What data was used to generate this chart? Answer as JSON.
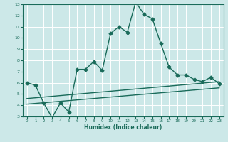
{
  "xlabel": "Humidex (Indice chaleur)",
  "bg_color": "#cce8e8",
  "grid_color": "#ffffff",
  "line_color": "#1a6b5a",
  "xlim": [
    -0.5,
    23.5
  ],
  "ylim": [
    3,
    13
  ],
  "xticks": [
    0,
    1,
    2,
    3,
    4,
    5,
    6,
    7,
    8,
    9,
    10,
    11,
    12,
    13,
    14,
    15,
    16,
    17,
    18,
    19,
    20,
    21,
    22,
    23
  ],
  "yticks": [
    3,
    4,
    5,
    6,
    7,
    8,
    9,
    10,
    11,
    12,
    13
  ],
  "series1_x": [
    0,
    1,
    2,
    3,
    4,
    5,
    6,
    7,
    8,
    9,
    10,
    11,
    12,
    13,
    14,
    15,
    16,
    17,
    18,
    19,
    20,
    21,
    22,
    23
  ],
  "series1_y": [
    6.0,
    5.8,
    4.2,
    2.9,
    4.2,
    3.4,
    7.2,
    7.2,
    7.9,
    7.1,
    10.4,
    11.0,
    10.5,
    13.2,
    12.1,
    11.7,
    9.5,
    7.4,
    6.7,
    6.7,
    6.3,
    6.1,
    6.5,
    5.9
  ],
  "series2_x": [
    0,
    23
  ],
  "series2_y": [
    4.6,
    6.1
  ],
  "series3_x": [
    0,
    23
  ],
  "series3_y": [
    4.1,
    5.55
  ],
  "marker": "D",
  "markersize": 2.5,
  "linewidth": 1.0
}
